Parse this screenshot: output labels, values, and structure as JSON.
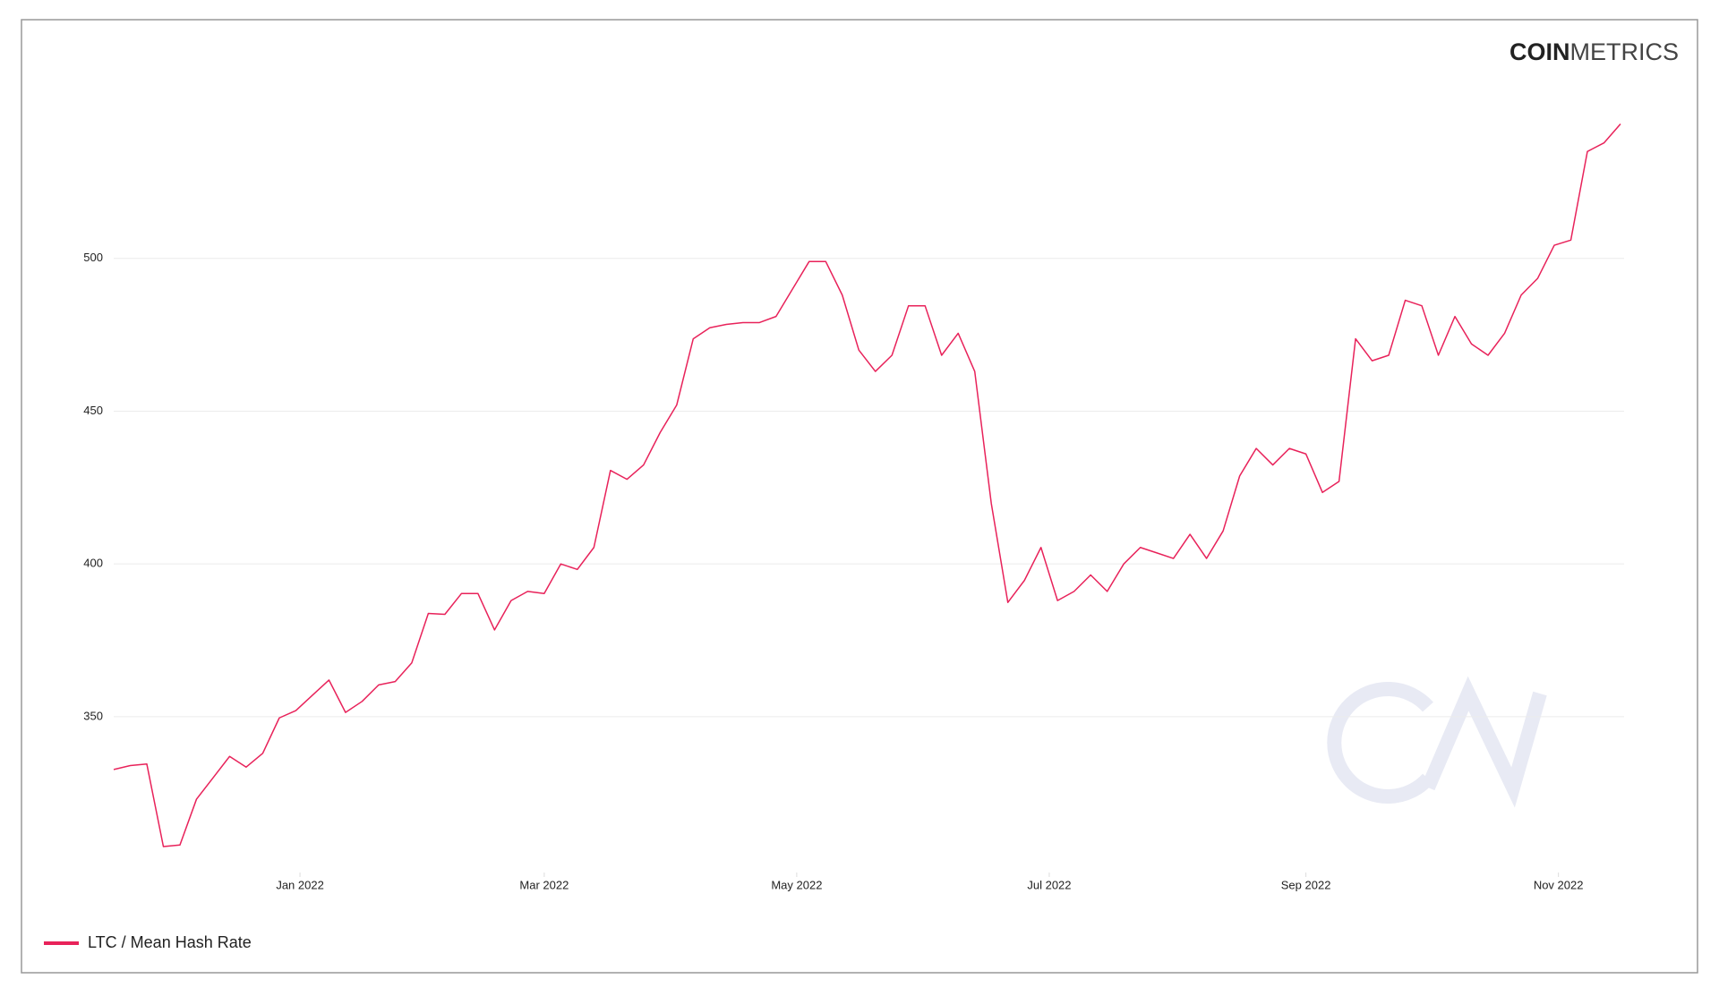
{
  "logo": {
    "bold": "COIN",
    "light": "METRICS"
  },
  "chart_data": {
    "type": "line",
    "x": [
      "2021-11-17",
      "2021-11-21",
      "2021-11-25",
      "2021-11-29",
      "2021-12-03",
      "2021-12-07",
      "2021-12-11",
      "2021-12-15",
      "2021-12-19",
      "2021-12-23",
      "2021-12-27",
      "2021-12-31",
      "2022-01-04",
      "2022-01-08",
      "2022-01-12",
      "2022-01-16",
      "2022-01-20",
      "2022-01-24",
      "2022-01-28",
      "2022-02-01",
      "2022-02-05",
      "2022-02-09",
      "2022-02-13",
      "2022-02-17",
      "2022-02-21",
      "2022-02-25",
      "2022-03-01",
      "2022-03-05",
      "2022-03-09",
      "2022-03-13",
      "2022-03-17",
      "2022-03-21",
      "2022-03-25",
      "2022-03-29",
      "2022-04-02",
      "2022-04-06",
      "2022-04-10",
      "2022-04-14",
      "2022-04-18",
      "2022-04-22",
      "2022-04-26",
      "2022-04-30",
      "2022-05-04",
      "2022-05-08",
      "2022-05-12",
      "2022-05-16",
      "2022-05-20",
      "2022-05-24",
      "2022-05-28",
      "2022-06-01",
      "2022-06-05",
      "2022-06-09",
      "2022-06-13",
      "2022-06-17",
      "2022-06-21",
      "2022-06-25",
      "2022-06-29",
      "2022-07-03",
      "2022-07-07",
      "2022-07-11",
      "2022-07-15",
      "2022-07-19",
      "2022-07-23",
      "2022-07-27",
      "2022-07-31",
      "2022-08-04",
      "2022-08-08",
      "2022-08-12",
      "2022-08-16",
      "2022-08-20",
      "2022-08-24",
      "2022-08-28",
      "2022-09-01",
      "2022-09-05",
      "2022-09-09",
      "2022-09-13",
      "2022-09-17",
      "2022-09-21",
      "2022-09-25",
      "2022-09-29",
      "2022-10-03",
      "2022-10-07",
      "2022-10-11",
      "2022-10-15",
      "2022-10-19",
      "2022-10-23",
      "2022-10-27",
      "2022-10-31",
      "2022-11-04",
      "2022-11-08",
      "2022-11-12",
      "2022-11-16"
    ],
    "series": [
      {
        "name": "LTC / Mean Hash Rate",
        "color": "#e8225a",
        "values": [
          332.7,
          334,
          334.5,
          307.5,
          308,
          323,
          330,
          337,
          333.5,
          338,
          349.6,
          352,
          357,
          362,
          351.4,
          355,
          360.4,
          361.5,
          367.6,
          383.8,
          383.5,
          390.3,
          390.3,
          378.4,
          388,
          391,
          390.3,
          400,
          398.2,
          405.4,
          430.6,
          427.7,
          432.4,
          443,
          452,
          473.7,
          477.3,
          478.4,
          479,
          479,
          481,
          490,
          499,
          499,
          488,
          470,
          463,
          468.3,
          484.5,
          484.5,
          468.3,
          475.5,
          463,
          419.8,
          387.4,
          394.6,
          405.4,
          388,
          391,
          396.4,
          391,
          400,
          405.4,
          403.6,
          401.8,
          409.7,
          401.8,
          410.8,
          428.8,
          437.8,
          432.4,
          437.8,
          436,
          423.4,
          427,
          473.7,
          466.5,
          468.3,
          486.3,
          484.5,
          468.3,
          481,
          472,
          468.3,
          475.5,
          488,
          493.5,
          504.3,
          506,
          535,
          537.8,
          544
        ]
      }
    ],
    "xlim": [
      "2021-11-17",
      "2022-11-16"
    ],
    "xticks": [
      {
        "value": "2022-01-01",
        "label": "Jan 2022"
      },
      {
        "value": "2022-03-01",
        "label": "Mar 2022"
      },
      {
        "value": "2022-05-01",
        "label": "May 2022"
      },
      {
        "value": "2022-07-01",
        "label": "Jul 2022"
      },
      {
        "value": "2022-09-01",
        "label": "Sep 2022"
      },
      {
        "value": "2022-11-01",
        "label": "Nov 2022"
      }
    ],
    "ylim": [
      299,
      555
    ],
    "yticks": [
      350,
      400,
      450,
      500
    ],
    "grid": true,
    "legend": "bottom-left"
  }
}
